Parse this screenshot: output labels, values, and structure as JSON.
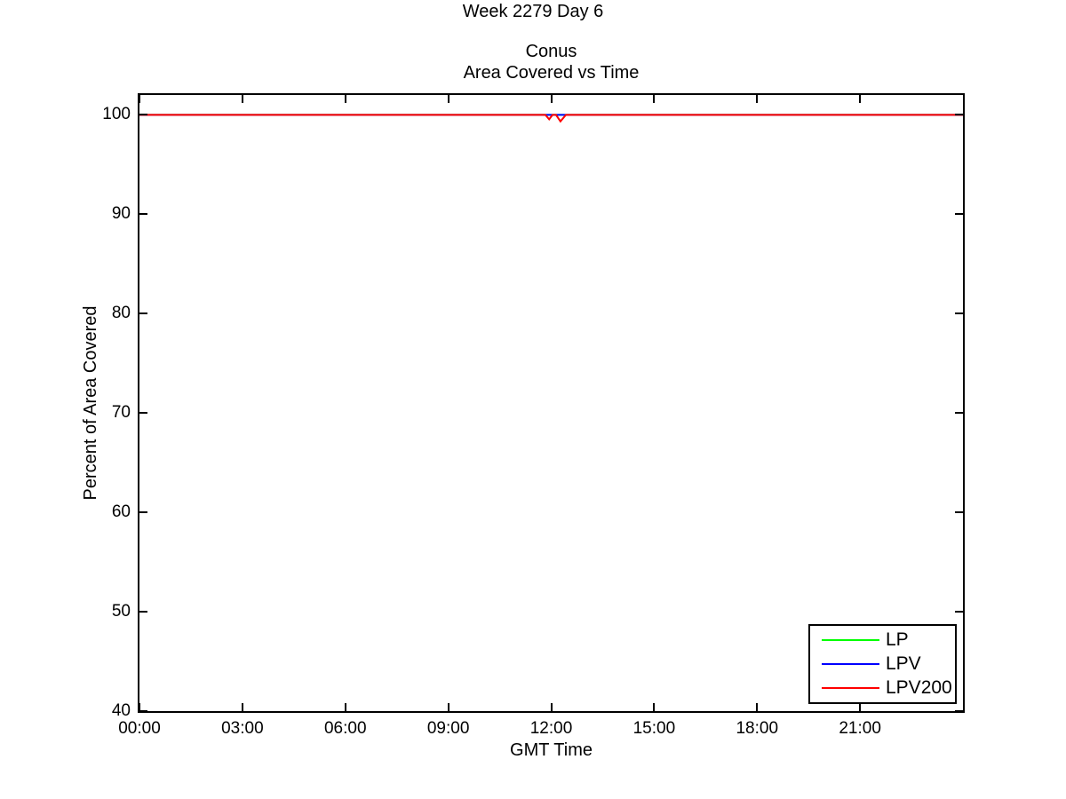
{
  "chart_data": {
    "type": "line",
    "suptitle": "Week 2279 Day 6",
    "title_lines": [
      "Conus",
      "Area Covered vs Time"
    ],
    "xlabel": "GMT Time",
    "ylabel": "Percent of Area Covered",
    "xlim_hours": [
      0,
      24
    ],
    "ylim": [
      40,
      102
    ],
    "x_ticks_hours": [
      0,
      3,
      6,
      9,
      12,
      15,
      18,
      21
    ],
    "x_tick_labels": [
      "00:00",
      "03:00",
      "06:00",
      "09:00",
      "12:00",
      "15:00",
      "18:00",
      "21:00"
    ],
    "y_ticks": [
      40,
      50,
      60,
      70,
      80,
      90,
      100
    ],
    "y_tick_labels": [
      "40",
      "50",
      "60",
      "70",
      "80",
      "90",
      "100"
    ],
    "grid": false,
    "axis_color": "#000000",
    "background_color": "#ffffff",
    "legend": {
      "position": "inside-bottom-right",
      "entries": [
        {
          "label": "LP",
          "color": "#00ff00"
        },
        {
          "label": "LPV",
          "color": "#0000ff"
        },
        {
          "label": "LPV200",
          "color": "#ff0000"
        }
      ]
    },
    "series": [
      {
        "name": "LP",
        "color": "#00ff00",
        "x_hours": [
          0,
          24
        ],
        "values": [
          100,
          100
        ]
      },
      {
        "name": "LPV",
        "color": "#0000ff",
        "x_hours": [
          0,
          24
        ],
        "values": [
          100,
          100
        ]
      },
      {
        "name": "LPV200",
        "color": "#ff0000",
        "x_hours": [
          0,
          11.83,
          11.94,
          12.04,
          12.14,
          12.27,
          12.43,
          24
        ],
        "values": [
          100,
          100,
          99.55,
          100,
          100,
          99.35,
          100,
          100
        ]
      }
    ]
  }
}
